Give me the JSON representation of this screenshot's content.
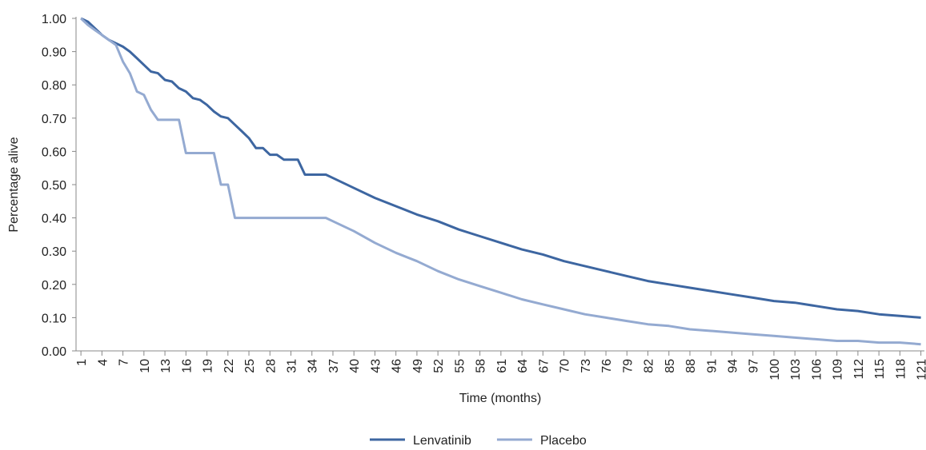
{
  "chart_data": {
    "type": "line",
    "y_label": "Percentage alive",
    "x_label": "Time (months)",
    "x": [
      1,
      2,
      3,
      4,
      5,
      6,
      7,
      8,
      9,
      10,
      11,
      12,
      13,
      14,
      15,
      16,
      17,
      18,
      19,
      20,
      21,
      22,
      23,
      24,
      25,
      26,
      27,
      28,
      29,
      30,
      31,
      32,
      33,
      34,
      35,
      36,
      37,
      40,
      43,
      46,
      49,
      52,
      55,
      58,
      61,
      64,
      67,
      70,
      73,
      76,
      79,
      82,
      85,
      88,
      91,
      94,
      97,
      100,
      103,
      106,
      109,
      112,
      115,
      118,
      121
    ],
    "series": [
      {
        "name": "Lenvatinib",
        "color": "#3d66a1",
        "values": [
          1.0,
          0.99,
          0.97,
          0.95,
          0.935,
          0.925,
          0.915,
          0.9,
          0.88,
          0.86,
          0.84,
          0.835,
          0.815,
          0.81,
          0.79,
          0.78,
          0.76,
          0.755,
          0.74,
          0.72,
          0.705,
          0.7,
          0.68,
          0.66,
          0.64,
          0.61,
          0.61,
          0.59,
          0.59,
          0.575,
          0.575,
          0.575,
          0.53,
          0.53,
          0.53,
          0.53,
          0.52,
          0.49,
          0.46,
          0.435,
          0.41,
          0.39,
          0.365,
          0.345,
          0.325,
          0.305,
          0.29,
          0.27,
          0.255,
          0.24,
          0.225,
          0.21,
          0.2,
          0.19,
          0.18,
          0.17,
          0.16,
          0.15,
          0.145,
          0.135,
          0.125,
          0.12,
          0.11,
          0.105,
          0.1
        ]
      },
      {
        "name": "Placebo",
        "color": "#94aad1",
        "values": [
          1.0,
          0.98,
          0.965,
          0.95,
          0.935,
          0.92,
          0.87,
          0.835,
          0.78,
          0.77,
          0.725,
          0.695,
          0.695,
          0.695,
          0.695,
          0.595,
          0.595,
          0.595,
          0.595,
          0.595,
          0.5,
          0.5,
          0.4,
          0.4,
          0.4,
          0.4,
          0.4,
          0.4,
          0.4,
          0.4,
          0.4,
          0.4,
          0.4,
          0.4,
          0.4,
          0.4,
          0.39,
          0.36,
          0.325,
          0.295,
          0.27,
          0.24,
          0.215,
          0.195,
          0.175,
          0.155,
          0.14,
          0.125,
          0.11,
          0.1,
          0.09,
          0.08,
          0.075,
          0.065,
          0.06,
          0.055,
          0.05,
          0.045,
          0.04,
          0.035,
          0.03,
          0.03,
          0.025,
          0.025,
          0.02
        ]
      }
    ],
    "xlim": [
      0.3,
      121.5
    ],
    "xticks": [
      1,
      4,
      7,
      10,
      13,
      16,
      19,
      22,
      25,
      28,
      31,
      34,
      37,
      40,
      43,
      46,
      49,
      52,
      55,
      58,
      61,
      64,
      67,
      70,
      73,
      76,
      79,
      82,
      85,
      88,
      91,
      94,
      97,
      100,
      103,
      106,
      109,
      112,
      115,
      118,
      121
    ],
    "ylim": [
      0,
      1
    ],
    "yticks": [
      {
        "value": 0,
        "label": "0.00"
      },
      {
        "value": 0.1,
        "label": "0.10"
      },
      {
        "value": 0.2,
        "label": "0.20"
      },
      {
        "value": 0.3,
        "label": "0.30"
      },
      {
        "value": 0.4,
        "label": "0.40"
      },
      {
        "value": 0.5,
        "label": "0.50"
      },
      {
        "value": 0.6,
        "label": "0.60"
      },
      {
        "value": 0.7,
        "label": "0.70"
      },
      {
        "value": 0.8,
        "label": "0.80"
      },
      {
        "value": 0.9,
        "label": "0.90"
      },
      {
        "value": 1,
        "label": "1.00"
      }
    ],
    "grid": false,
    "legend": "bottom"
  }
}
